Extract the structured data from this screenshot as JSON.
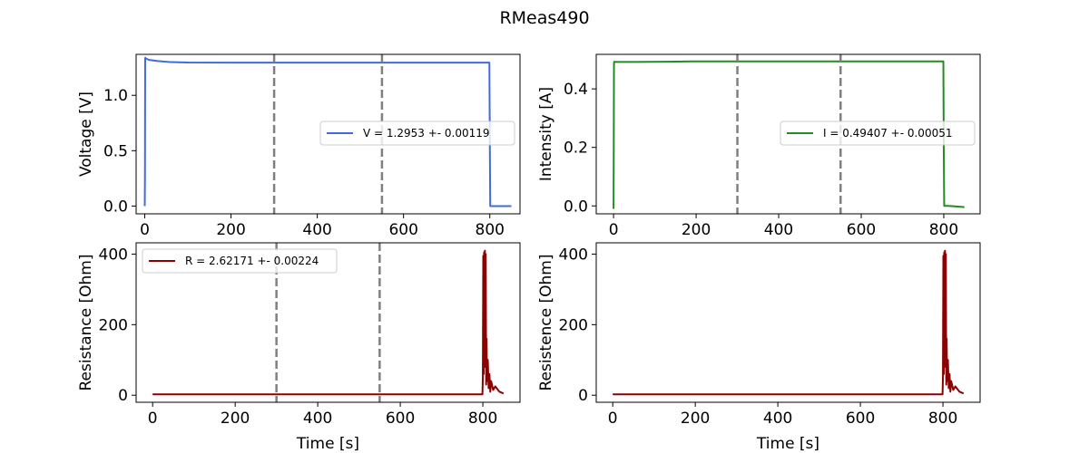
{
  "figure": {
    "suptitle": "RMeas490"
  },
  "colors": {
    "voltage": "#4169e1",
    "intensity": "#228b22",
    "resistance": "#8b0000",
    "vline": "#808080"
  },
  "chart_data": [
    {
      "id": "voltage",
      "type": "line",
      "title": "",
      "xlabel": "",
      "ylabel": "Voltage [V]",
      "xlim": [
        -20,
        870
      ],
      "ylim": [
        -0.07,
        1.37
      ],
      "xticks": [
        0,
        200,
        400,
        600,
        800
      ],
      "yticks": [
        0.0,
        0.5,
        1.0
      ],
      "ytick_labels": [
        "0.0",
        "0.5",
        "1.0"
      ],
      "vlines": [
        300,
        550
      ],
      "legend": {
        "placement": "center-right",
        "label": "V = 1.2953 +- 0.00119"
      },
      "series": [
        {
          "name": "V = 1.2953 +- 0.00119",
          "x": [
            0,
            0.5,
            1,
            1.5,
            2,
            4,
            10,
            30,
            60,
            100,
            200,
            300,
            400,
            500,
            550,
            600,
            700,
            799,
            800,
            801,
            850
          ],
          "y": [
            0.0,
            0.25,
            1.33,
            1.34,
            1.33,
            1.33,
            1.32,
            1.31,
            1.3,
            1.296,
            1.295,
            1.295,
            1.295,
            1.295,
            1.295,
            1.295,
            1.295,
            1.295,
            0.6,
            0.0,
            0.0
          ]
        }
      ]
    },
    {
      "id": "intensity",
      "type": "line",
      "title": "",
      "xlabel": "",
      "ylabel": "Intensity [A]",
      "xlim": [
        -42,
        888
      ],
      "ylim": [
        -0.027,
        0.518
      ],
      "xticks": [
        0,
        200,
        400,
        600,
        800
      ],
      "yticks": [
        0.0,
        0.2,
        0.4
      ],
      "ytick_labels": [
        "0.0",
        "0.2",
        "0.4"
      ],
      "vlines": [
        300,
        550
      ],
      "legend": {
        "placement": "center-right",
        "label": "I = 0.49407 +- 0.00051"
      },
      "series": [
        {
          "name": "I = 0.49407 +- 0.00051",
          "x": [
            0,
            0.5,
            1,
            2,
            5,
            50,
            130,
            200,
            300,
            400,
            500,
            550,
            600,
            700,
            799,
            800,
            801,
            810,
            830,
            850
          ],
          "y": [
            -0.01,
            0.21,
            0.49,
            0.493,
            0.492,
            0.492,
            0.493,
            0.494,
            0.494,
            0.494,
            0.494,
            0.494,
            0.494,
            0.494,
            0.494,
            0.2,
            0.0,
            0.0,
            -0.002,
            -0.004
          ]
        }
      ]
    },
    {
      "id": "resistance",
      "type": "line",
      "title": "",
      "xlabel": "Time [s]",
      "ylabel": "Resistance [Ohm]",
      "xlim": [
        -40,
        890
      ],
      "ylim": [
        -20,
        432
      ],
      "xticks": [
        0,
        200,
        400,
        600,
        800
      ],
      "yticks": [
        0,
        200,
        400
      ],
      "ytick_labels": [
        "0",
        "200",
        "400"
      ],
      "vlines": [
        300,
        550
      ],
      "legend": {
        "placement": "top-left",
        "label": "R = 2.62171 +- 0.00224"
      },
      "series": [
        {
          "name": "R = 2.62171 +- 0.00224",
          "x": [
            0,
            100,
            200,
            300,
            400,
            500,
            600,
            700,
            799,
            800,
            801,
            802,
            803,
            804,
            805,
            806,
            807,
            808,
            809,
            810,
            812,
            814,
            816,
            818,
            820,
            825,
            830,
            840,
            850
          ],
          "y": [
            2.6,
            2.6,
            2.6,
            2.6,
            2.6,
            2.6,
            2.6,
            2.6,
            2.6,
            50,
            395,
            60,
            405,
            80,
            410,
            120,
            400,
            30,
            160,
            40,
            100,
            20,
            60,
            10,
            40,
            15,
            25,
            10,
            5
          ]
        }
      ]
    },
    {
      "id": "resistence",
      "type": "line",
      "title": "",
      "xlabel": "Time [s]",
      "ylabel": "Resistence [Ohm]",
      "xlim": [
        -40,
        890
      ],
      "ylim": [
        -20,
        432
      ],
      "xticks": [
        0,
        200,
        400,
        600,
        800
      ],
      "yticks": [
        0,
        200,
        400
      ],
      "ytick_labels": [
        "0",
        "200",
        "400"
      ],
      "vlines": [],
      "legend": null,
      "series": [
        {
          "x": [
            0,
            100,
            200,
            300,
            400,
            500,
            600,
            700,
            799,
            800,
            801,
            802,
            803,
            804,
            805,
            806,
            807,
            808,
            809,
            810,
            812,
            814,
            816,
            818,
            820,
            825,
            830,
            840,
            850
          ],
          "y": [
            2.6,
            2.6,
            2.6,
            2.6,
            2.6,
            2.6,
            2.6,
            2.6,
            2.6,
            50,
            395,
            60,
            405,
            80,
            410,
            120,
            400,
            30,
            160,
            40,
            100,
            20,
            60,
            10,
            40,
            15,
            25,
            10,
            5
          ]
        }
      ]
    }
  ]
}
